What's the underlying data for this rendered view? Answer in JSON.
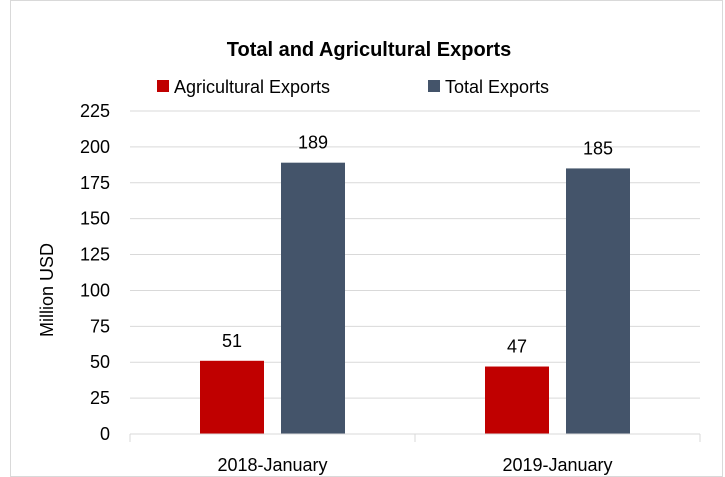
{
  "chart_data": {
    "type": "bar",
    "title": "Total and Agricultural Exports",
    "ylabel": "Million USD",
    "xlabel": "",
    "categories": [
      "2018-January",
      "2019-January"
    ],
    "series": [
      {
        "name": "Agricultural Exports",
        "values": [
          51,
          47
        ],
        "color": "#C00000"
      },
      {
        "name": "Total Exports",
        "values": [
          189,
          185
        ],
        "color": "#44546A"
      }
    ],
    "ylim": [
      0,
      225
    ],
    "yticks": [
      0,
      25,
      50,
      75,
      100,
      125,
      150,
      175,
      200,
      225
    ],
    "grid": true,
    "legend_position": "top",
    "data_labels": true
  }
}
